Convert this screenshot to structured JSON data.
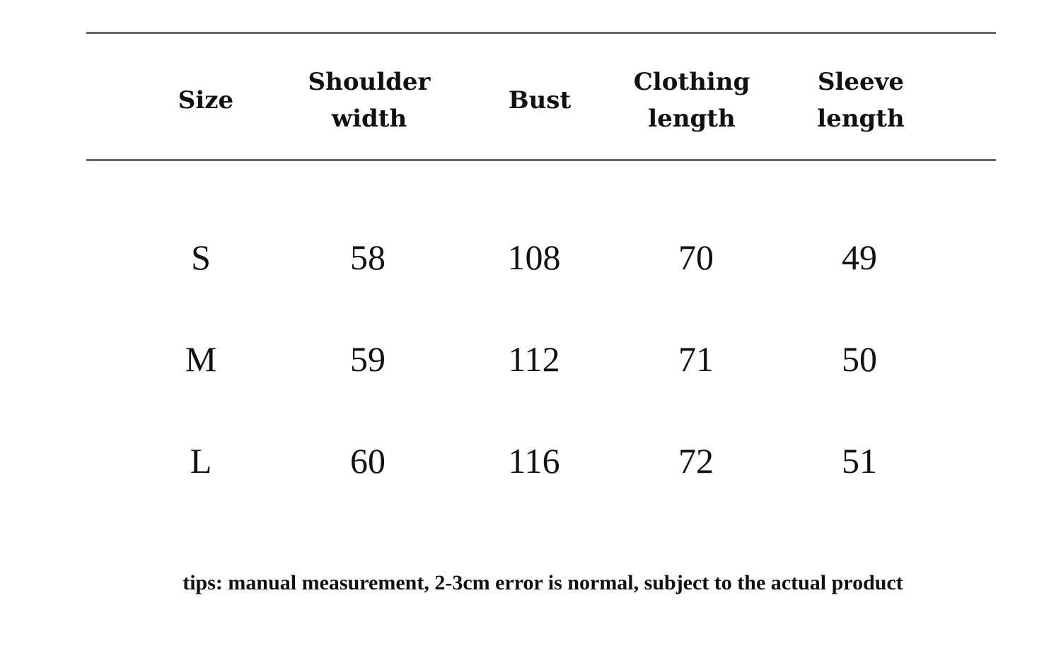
{
  "table": {
    "header": [
      "Size",
      "Shoulder width",
      "Bust",
      "Clothing length",
      "Sleeve length"
    ],
    "rows": [
      [
        "S",
        "58",
        "108",
        "70",
        "49"
      ],
      [
        "M",
        "59",
        "112",
        "71",
        "50"
      ],
      [
        "L",
        "60",
        "116",
        "72",
        "51"
      ]
    ]
  },
  "footer": {
    "note": "tips: manual measurement, 2-3cm error is normal, subject to the actual product"
  }
}
